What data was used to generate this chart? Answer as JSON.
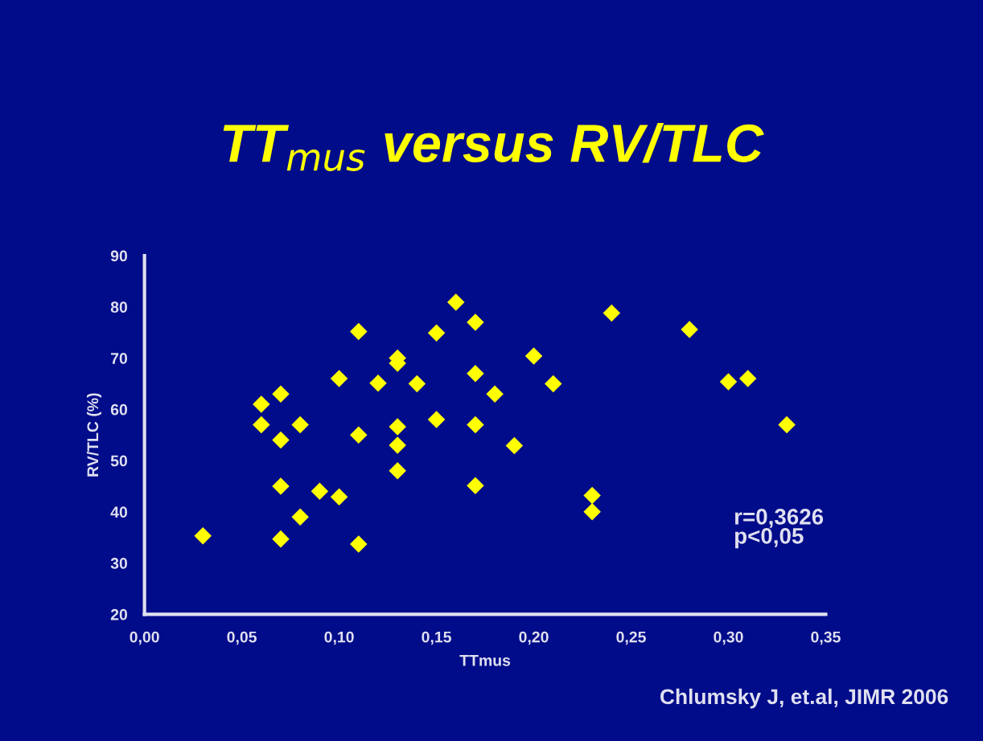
{
  "chart_data": {
    "type": "scatter",
    "title": "TT$_{mus}$ versus RV/TLC",
    "xlabel": "TTmus",
    "ylabel": "RV/TLC (%)",
    "x": [
      0.03,
      0.06,
      0.06,
      0.07,
      0.07,
      0.07,
      0.07,
      0.08,
      0.08,
      0.09,
      0.1,
      0.1,
      0.11,
      0.11,
      0.11,
      0.12,
      0.13,
      0.13,
      0.13,
      0.13,
      0.13,
      0.14,
      0.15,
      0.15,
      0.16,
      0.17,
      0.17,
      0.17,
      0.17,
      0.18,
      0.19,
      0.2,
      0.21,
      0.23,
      0.23,
      0.24,
      0.28,
      0.3,
      0.31,
      0.33
    ],
    "series": [
      {
        "color": "#ffff00",
        "values": [
          35.3,
          61,
          57,
          63,
          54,
          45,
          34.7,
          57,
          39,
          44,
          66,
          42.9,
          75.2,
          55,
          33.7,
          65.1,
          70,
          69,
          56.6,
          53,
          48,
          65,
          74.9,
          58,
          80.9,
          77,
          67,
          57,
          45.1,
          63,
          52.9,
          70.4,
          65,
          43.2,
          40,
          78.8,
          75.6,
          65.4,
          66,
          57
        ]
      }
    ],
    "marker": "diamond",
    "xlim": [
      0,
      0.35
    ],
    "xticks": [
      {
        "value": 0,
        "label": "0,00"
      },
      {
        "value": 0.05,
        "label": "0,05"
      },
      {
        "value": 0.1,
        "label": "0,10"
      },
      {
        "value": 0.15,
        "label": "0,15"
      },
      {
        "value": 0.2,
        "label": "0,20"
      },
      {
        "value": 0.25,
        "label": "0,25"
      },
      {
        "value": 0.3,
        "label": "0,30"
      },
      {
        "value": 0.35,
        "label": "0,35"
      }
    ],
    "ylim": [
      20,
      90
    ],
    "yticks": [
      20,
      30,
      40,
      50,
      60,
      70,
      80,
      90
    ],
    "grid": false,
    "legend": false,
    "annotations": [
      "r=0,3626\np<0,05",
      "Chlumsky J, et.al, JIMR 2006"
    ]
  }
}
